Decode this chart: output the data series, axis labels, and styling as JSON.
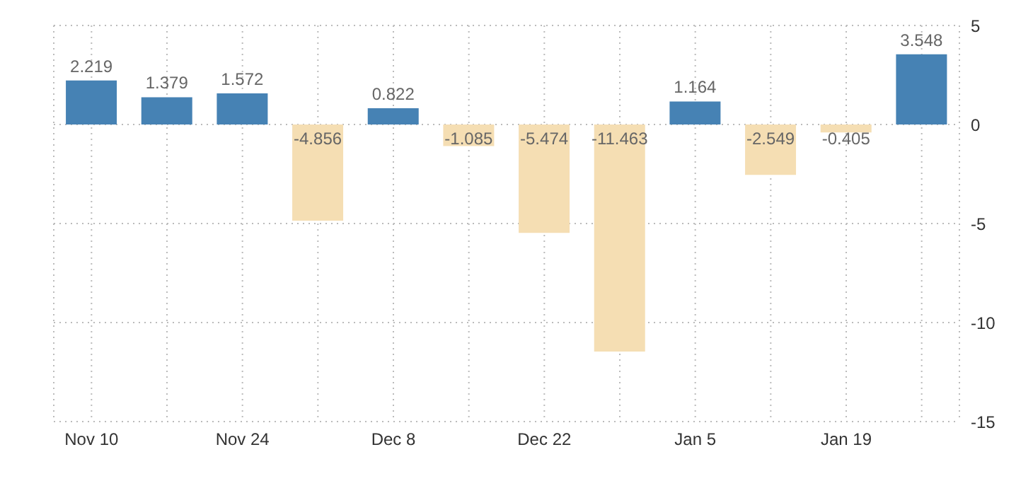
{
  "chart_data": {
    "type": "bar",
    "categories": [
      "Nov 10",
      null,
      "Nov 24",
      null,
      "Dec 8",
      null,
      "Dec 22",
      null,
      "Jan 5",
      null,
      "Jan 19",
      null
    ],
    "values": [
      2.219,
      1.379,
      1.572,
      -4.856,
      0.822,
      -1.085,
      -5.474,
      -11.463,
      1.164,
      -2.549,
      -0.405,
      3.548
    ],
    "colors": [
      "#4682b4",
      "#4682b4",
      "#4682b4",
      "#f5deb3",
      "#4682b4",
      "#f5deb3",
      "#f5deb3",
      "#f5deb3",
      "#4682b4",
      "#f5deb3",
      "#f5deb3",
      "#4682b4"
    ],
    "ylim": [
      -15,
      5
    ],
    "yticks": [
      -15,
      -10,
      -5,
      0,
      5
    ],
    "grid": true,
    "data_labels": true
  }
}
